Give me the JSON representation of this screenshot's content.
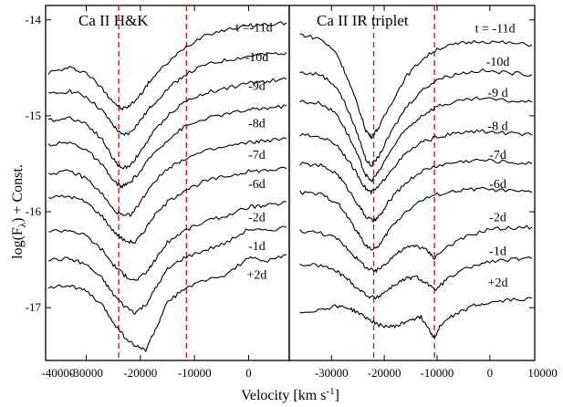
{
  "chart_data": {
    "type": "line",
    "ylabel_main": "log(F",
    "ylabel_sub": "λ",
    "ylabel_rest": ") + Const.",
    "xlabel_main": "Velocity [km s",
    "xlabel_sup": "-1",
    "xlabel_rest": "]",
    "ylim": [
      -17.55,
      -13.85
    ],
    "y_ticks": [
      -14,
      -15,
      -16,
      -17
    ],
    "y_tick_labels": [
      "-14",
      "-15",
      "-16",
      "-17"
    ],
    "panels": [
      {
        "title": "Ca II H&K",
        "xlim": [
          -37500,
          7500
        ],
        "x_ticks": [
          -40000,
          -30000,
          -20000,
          -10000,
          0,
          10000
        ],
        "x_tick_labels": [
          "-40000",
          "-30000",
          "-20000",
          "-10000",
          "0",
          "10000"
        ],
        "reference_velocities": [
          -24000,
          -11500
        ],
        "epochs": [
          {
            "label": "t =-11d",
            "label_x": 1000,
            "label_y": -14.12
          },
          {
            "label": "-10d",
            "label_x": 1500,
            "label_y": -14.43
          },
          {
            "label": "-9d",
            "label_x": 1500,
            "label_y": -14.73
          },
          {
            "label": "-8d",
            "label_x": 1500,
            "label_y": -15.12
          },
          {
            "label": "-7d",
            "label_x": 1500,
            "label_y": -15.45
          },
          {
            "label": "-6d",
            "label_x": 1500,
            "label_y": -15.75
          },
          {
            "label": "-2d",
            "label_x": 1500,
            "label_y": -16.1
          },
          {
            "label": "-1d",
            "label_x": 1500,
            "label_y": -16.4
          },
          {
            "label": "+2d",
            "label_x": 1500,
            "label_y": -16.7
          }
        ],
        "series": [
          {
            "x": [
              -37000,
              -33000,
              -30000,
              -27000,
              -25000,
              -23500,
              -22000,
              -20000,
              -18000,
              -15000,
              -12000,
              -8000,
              -4000,
              0,
              3000,
              7000
            ],
            "y": [
              -14.55,
              -14.5,
              -14.55,
              -14.72,
              -14.85,
              -14.93,
              -14.9,
              -14.78,
              -14.62,
              -14.45,
              -14.3,
              -14.15,
              -14.1,
              -14.06,
              -14.05,
              -14.03
            ]
          },
          {
            "x": [
              -37000,
              -33000,
              -30000,
              -27000,
              -25000,
              -23500,
              -22000,
              -20000,
              -18000,
              -15000,
              -12000,
              -8000,
              -4000,
              0,
              3000,
              7000
            ],
            "y": [
              -14.78,
              -14.74,
              -14.8,
              -14.95,
              -15.1,
              -15.2,
              -15.18,
              -15.05,
              -14.9,
              -14.72,
              -14.58,
              -14.47,
              -14.42,
              -14.38,
              -14.36,
              -14.34
            ]
          },
          {
            "x": [
              -37000,
              -33000,
              -30000,
              -27000,
              -25000,
              -23500,
              -22000,
              -20000,
              -18000,
              -15000,
              -12000,
              -8000,
              -4000,
              0,
              3000,
              7000
            ],
            "y": [
              -15.05,
              -15.02,
              -15.08,
              -15.25,
              -15.45,
              -15.55,
              -15.52,
              -15.38,
              -15.2,
              -15.0,
              -14.86,
              -14.76,
              -14.71,
              -14.66,
              -14.64,
              -14.62
            ]
          },
          {
            "x": [
              -37000,
              -33000,
              -30000,
              -27000,
              -25000,
              -23500,
              -22000,
              -20000,
              -18000,
              -15000,
              -12000,
              -8000,
              -4000,
              0,
              3000,
              7000
            ],
            "y": [
              -15.3,
              -15.28,
              -15.35,
              -15.52,
              -15.68,
              -15.74,
              -15.7,
              -15.58,
              -15.42,
              -15.25,
              -15.12,
              -15.03,
              -14.98,
              -14.94,
              -14.92,
              -14.9
            ]
          },
          {
            "x": [
              -37000,
              -33000,
              -30000,
              -27000,
              -25000,
              -23000,
              -21500,
              -20000,
              -18000,
              -15000,
              -12000,
              -8000,
              -4000,
              0,
              3000,
              7000
            ],
            "y": [
              -15.6,
              -15.58,
              -15.65,
              -15.82,
              -15.98,
              -16.05,
              -16.02,
              -15.9,
              -15.72,
              -15.55,
              -15.45,
              -15.37,
              -15.32,
              -15.28,
              -15.26,
              -15.24
            ]
          },
          {
            "x": [
              -37000,
              -33000,
              -30000,
              -27000,
              -25000,
              -23000,
              -21000,
              -19500,
              -18000,
              -15000,
              -12000,
              -8000,
              -4000,
              0,
              3000,
              7000
            ],
            "y": [
              -15.85,
              -15.84,
              -15.9,
              -16.05,
              -16.2,
              -16.3,
              -16.32,
              -16.22,
              -16.08,
              -15.9,
              -15.78,
              -15.68,
              -15.63,
              -15.58,
              -15.57,
              -15.55
            ]
          },
          {
            "x": [
              -37000,
              -33000,
              -30000,
              -27000,
              -25000,
              -23000,
              -21000,
              -19000,
              -17000,
              -15000,
              -12000,
              -8000,
              -4000,
              0,
              3000,
              7000
            ],
            "y": [
              -16.2,
              -16.19,
              -16.25,
              -16.4,
              -16.55,
              -16.66,
              -16.72,
              -16.64,
              -16.48,
              -16.32,
              -16.2,
              -16.1,
              -16.04,
              -15.95,
              -15.94,
              -15.9
            ]
          },
          {
            "x": [
              -37000,
              -33000,
              -30000,
              -27000,
              -25000,
              -23000,
              -21000,
              -19000,
              -17000,
              -15000,
              -12000,
              -8000,
              -4000,
              0,
              3000,
              7000
            ],
            "y": [
              -16.5,
              -16.49,
              -16.55,
              -16.7,
              -16.86,
              -16.98,
              -17.05,
              -16.97,
              -16.78,
              -16.6,
              -16.48,
              -16.4,
              -16.32,
              -16.18,
              -16.2,
              -16.16
            ]
          },
          {
            "x": [
              -37000,
              -33000,
              -30000,
              -27000,
              -25000,
              -23000,
              -21000,
              -19000,
              -17000,
              -15000,
              -12000,
              -8000,
              -4000,
              0,
              3000,
              7000
            ],
            "y": [
              -16.78,
              -16.77,
              -16.83,
              -16.98,
              -17.15,
              -17.3,
              -17.4,
              -17.44,
              -17.2,
              -16.95,
              -16.8,
              -16.72,
              -16.65,
              -16.48,
              -16.52,
              -16.45
            ]
          }
        ]
      },
      {
        "title": "Ca II IR triplet",
        "xlim": [
          -38000,
          8500
        ],
        "x_ticks": [
          -30000,
          -20000,
          -10000,
          0,
          10000
        ],
        "x_tick_labels": [
          "-30000",
          "-20000",
          "-10000",
          "0",
          "10000"
        ],
        "reference_velocities": [
          -22000,
          -10500
        ],
        "epochs": [
          {
            "label": "t = -11d",
            "label_x": 1000,
            "label_y": -14.13
          },
          {
            "label": "-10d",
            "label_x": 1500,
            "label_y": -14.48
          },
          {
            "label": "-9 d",
            "label_x": 1500,
            "label_y": -14.8
          },
          {
            "label": "-8 d",
            "label_x": 1500,
            "label_y": -15.15
          },
          {
            "label": "-7d",
            "label_x": 1500,
            "label_y": -15.45
          },
          {
            "label": "-6d",
            "label_x": 1500,
            "label_y": -15.75
          },
          {
            "label": "-2d",
            "label_x": 1500,
            "label_y": -16.1
          },
          {
            "label": "-1d",
            "label_x": 1500,
            "label_y": -16.45
          },
          {
            "label": "+2d",
            "label_x": 1500,
            "label_y": -16.78
          }
        ],
        "series": [
          {
            "x": [
              -36000,
              -32000,
              -29000,
              -27000,
              -25000,
              -23500,
              -22500,
              -21000,
              -19000,
              -16000,
              -13000,
              -10000,
              -6000,
              -2000,
              3000,
              8000
            ],
            "y": [
              -14.15,
              -14.2,
              -14.35,
              -14.6,
              -14.9,
              -15.15,
              -15.22,
              -15.12,
              -14.9,
              -14.6,
              -14.42,
              -14.3,
              -14.25,
              -14.22,
              -14.24,
              -14.26
            ]
          },
          {
            "x": [
              -36000,
              -32000,
              -29000,
              -27000,
              -25000,
              -23500,
              -22500,
              -21000,
              -19000,
              -16000,
              -13000,
              -10000,
              -6000,
              -2000,
              3000,
              8000
            ],
            "y": [
              -14.55,
              -14.57,
              -14.7,
              -14.92,
              -15.2,
              -15.45,
              -15.52,
              -15.42,
              -15.2,
              -14.92,
              -14.74,
              -14.62,
              -14.56,
              -14.53,
              -14.55,
              -14.57
            ]
          },
          {
            "x": [
              -36000,
              -32000,
              -29000,
              -27000,
              -25000,
              -23500,
              -22500,
              -21000,
              -19000,
              -16000,
              -13000,
              -10000,
              -6000,
              -2000,
              3000,
              8000
            ],
            "y": [
              -14.85,
              -14.87,
              -14.98,
              -15.18,
              -15.42,
              -15.62,
              -15.68,
              -15.58,
              -15.38,
              -15.15,
              -15.0,
              -14.9,
              -14.85,
              -14.82,
              -14.84,
              -14.86
            ]
          },
          {
            "x": [
              -36000,
              -32000,
              -29000,
              -27000,
              -25000,
              -23500,
              -22500,
              -21000,
              -19000,
              -16000,
              -13000,
              -10000,
              -6000,
              -2000,
              3000,
              8000
            ],
            "y": [
              -15.2,
              -15.22,
              -15.3,
              -15.45,
              -15.62,
              -15.76,
              -15.8,
              -15.74,
              -15.58,
              -15.4,
              -15.28,
              -15.22,
              -15.18,
              -15.16,
              -15.18,
              -15.2
            ]
          },
          {
            "x": [
              -36000,
              -32000,
              -29000,
              -27000,
              -25000,
              -23500,
              -22000,
              -20500,
              -19000,
              -16000,
              -13000,
              -10000,
              -6000,
              -2000,
              3000,
              8000
            ],
            "y": [
              -15.5,
              -15.52,
              -15.6,
              -15.75,
              -15.92,
              -16.05,
              -16.1,
              -16.02,
              -15.88,
              -15.7,
              -15.58,
              -15.52,
              -15.48,
              -15.46,
              -15.48,
              -15.5
            ]
          },
          {
            "x": [
              -36000,
              -32000,
              -29000,
              -27000,
              -25000,
              -23500,
              -22000,
              -20500,
              -19000,
              -16000,
              -13000,
              -10000,
              -6000,
              -2000,
              3000,
              8000
            ],
            "y": [
              -15.8,
              -15.82,
              -15.9,
              -16.05,
              -16.22,
              -16.35,
              -16.4,
              -16.32,
              -16.18,
              -16.0,
              -15.88,
              -15.82,
              -15.78,
              -15.76,
              -15.78,
              -15.8
            ]
          },
          {
            "x": [
              -36000,
              -32000,
              -29000,
              -27000,
              -25000,
              -23000,
              -21500,
              -20000,
              -18000,
              -16000,
              -14000,
              -12000,
              -10500,
              -8000,
              -4000,
              0,
              4000,
              8000
            ],
            "y": [
              -16.2,
              -16.22,
              -16.28,
              -16.38,
              -16.5,
              -16.6,
              -16.62,
              -16.55,
              -16.45,
              -16.38,
              -16.35,
              -16.4,
              -16.48,
              -16.36,
              -16.25,
              -16.18,
              -16.17,
              -16.16
            ]
          },
          {
            "x": [
              -36000,
              -32000,
              -29000,
              -27000,
              -25000,
              -23000,
              -21500,
              -20000,
              -18000,
              -16000,
              -14000,
              -12000,
              -10500,
              -8000,
              -4000,
              0,
              4000,
              8000
            ],
            "y": [
              -16.55,
              -16.56,
              -16.62,
              -16.7,
              -16.8,
              -16.88,
              -16.9,
              -16.84,
              -16.76,
              -16.7,
              -16.68,
              -16.74,
              -16.82,
              -16.7,
              -16.58,
              -16.52,
              -16.5,
              -16.49
            ]
          },
          {
            "x": [
              -36000,
              -32000,
              -29000,
              -27000,
              -25000,
              -23000,
              -21000,
              -19000,
              -17000,
              -15000,
              -13000,
              -11500,
              -10500,
              -9500,
              -7000,
              -3000,
              0,
              4000,
              8000
            ],
            "y": [
              -17.05,
              -17.02,
              -16.98,
              -17.0,
              -17.05,
              -17.12,
              -17.18,
              -17.2,
              -17.18,
              -17.12,
              -17.1,
              -17.22,
              -17.32,
              -17.2,
              -17.08,
              -16.98,
              -16.95,
              -16.92,
              -16.9
            ]
          }
        ]
      }
    ]
  }
}
